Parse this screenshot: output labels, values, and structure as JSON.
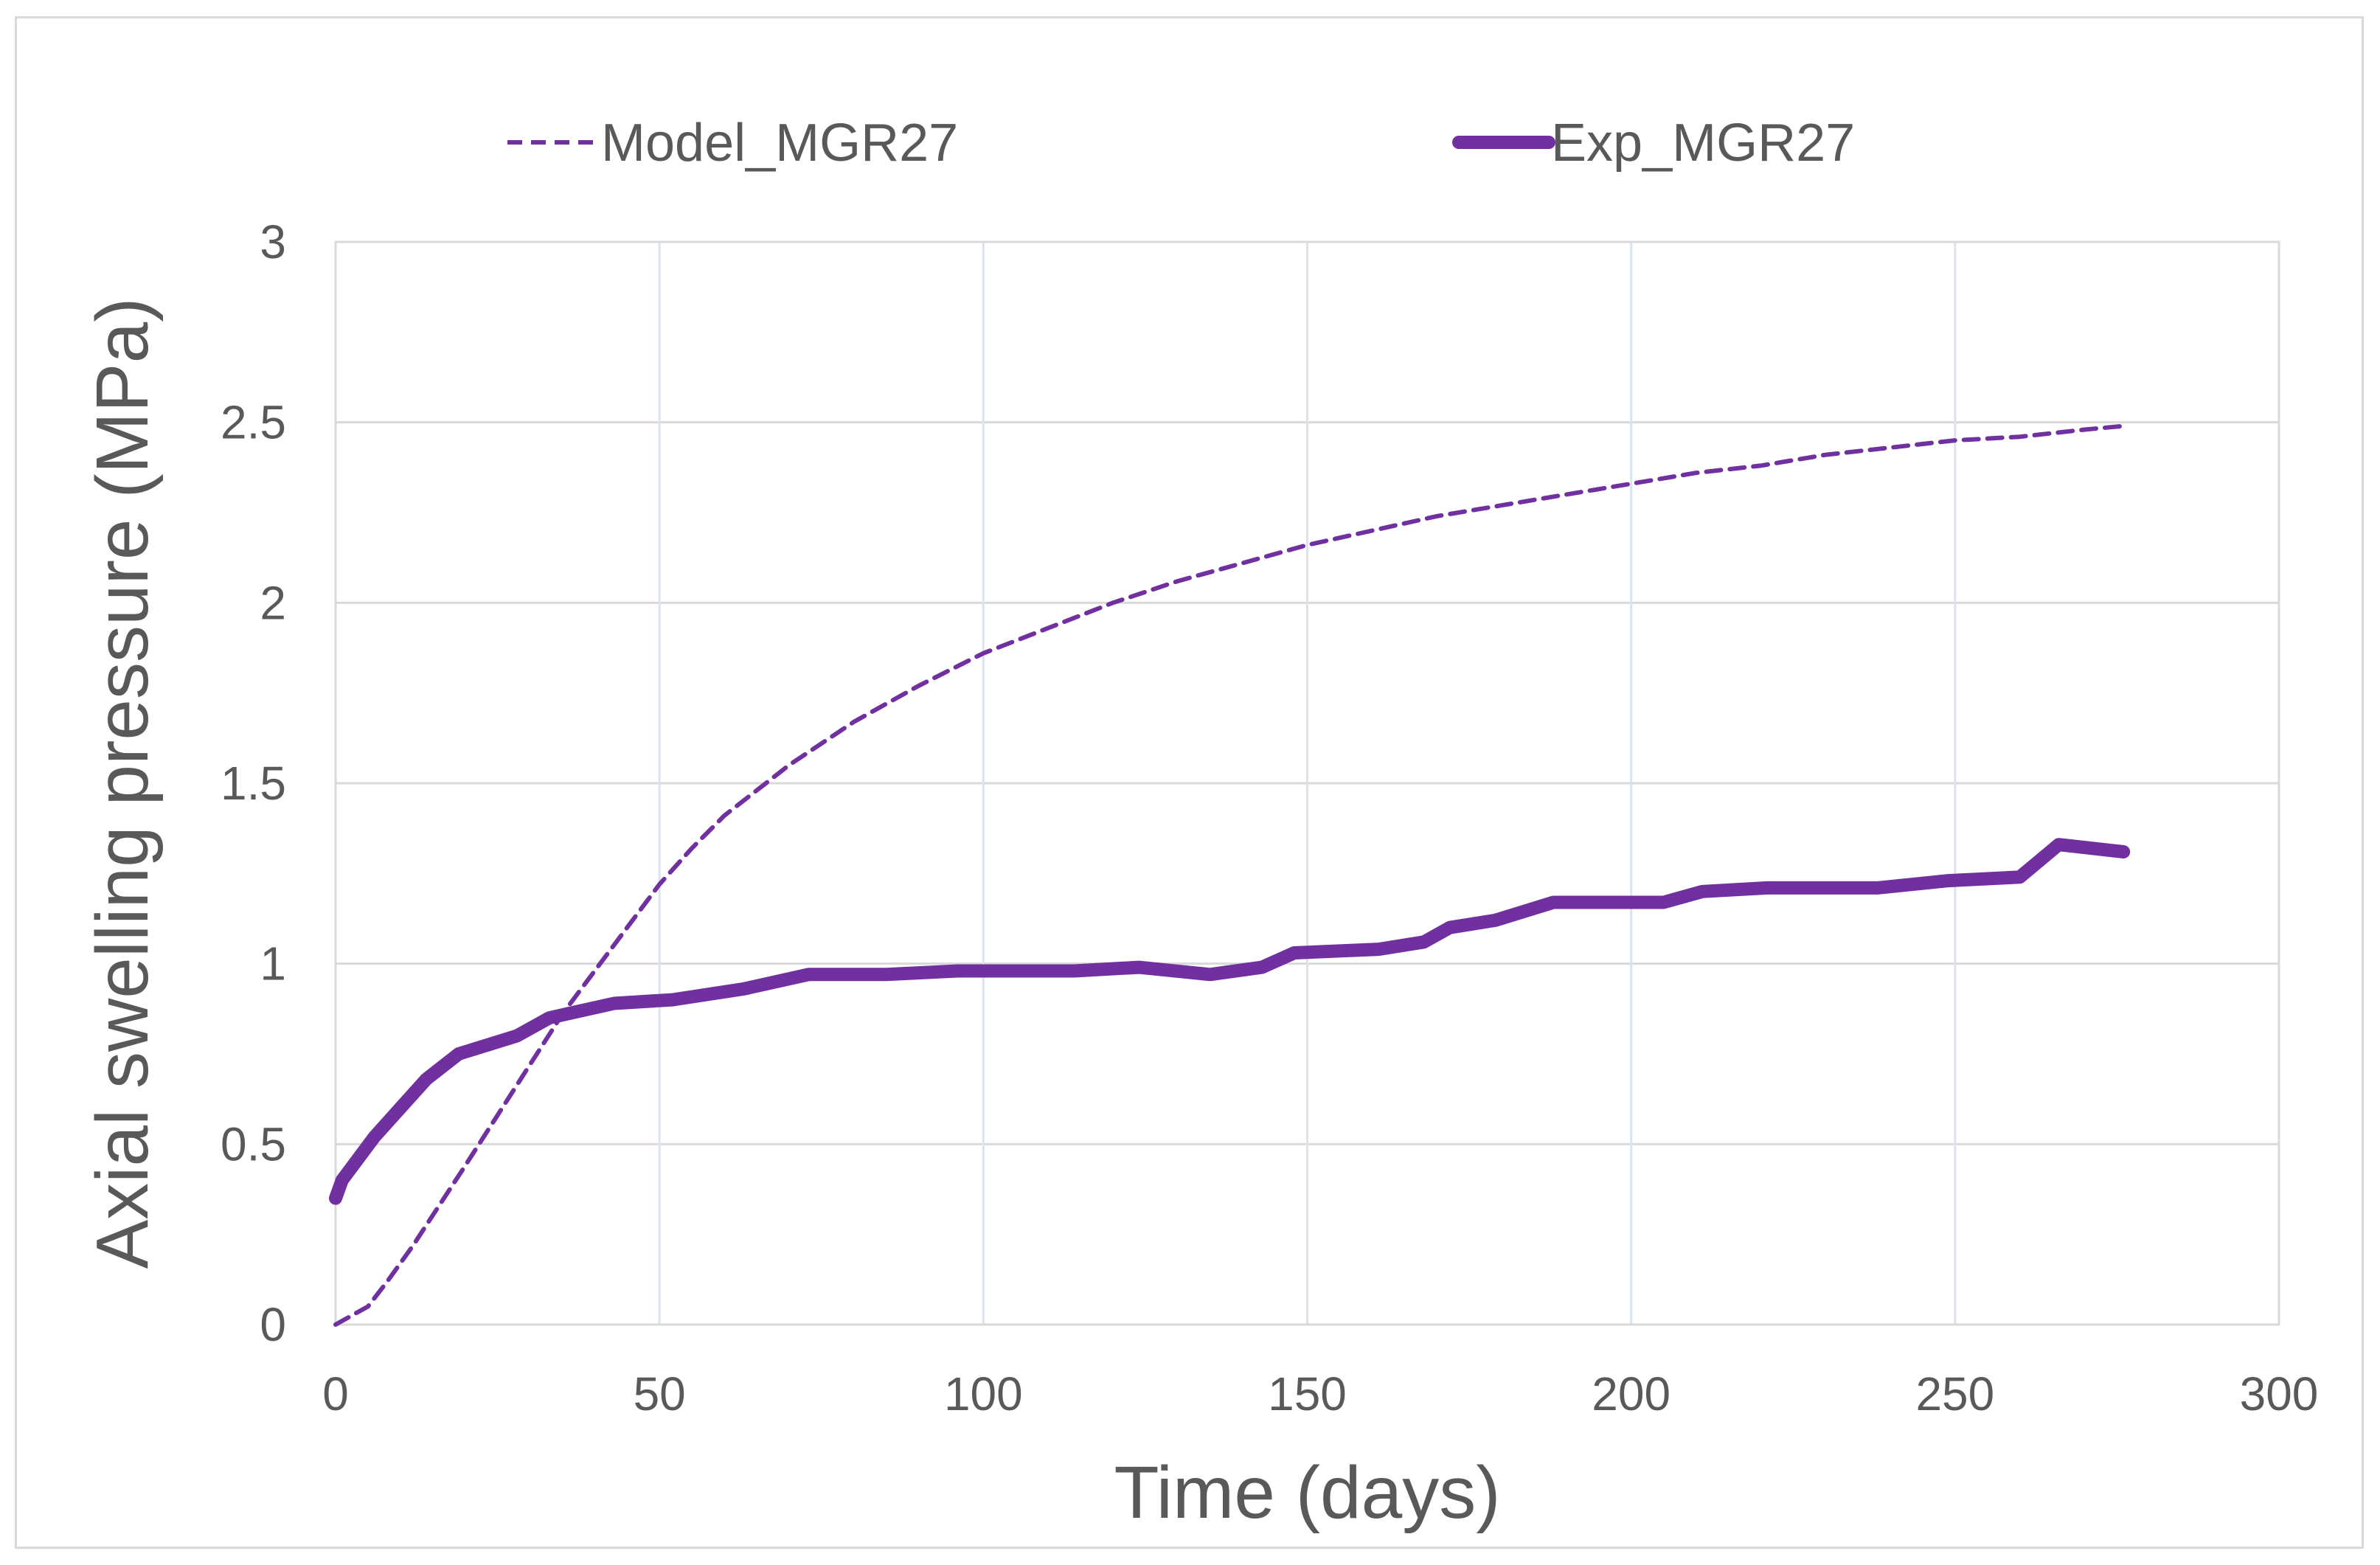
{
  "chart_data": {
    "type": "line",
    "title": "",
    "xlabel": "Time (days)",
    "ylabel": "Axial swelling pressure (MPa)",
    "xlim": [
      0,
      300
    ],
    "ylim": [
      0,
      3
    ],
    "xticks": [
      0,
      50,
      100,
      150,
      200,
      250,
      300
    ],
    "yticks": [
      0,
      0.5,
      1,
      1.5,
      2,
      2.5,
      3
    ],
    "xtick_labels": [
      "0",
      "50",
      "100",
      "150",
      "200",
      "250",
      "300"
    ],
    "ytick_labels": [
      "0",
      "0.5",
      "1",
      "1.5",
      "2",
      "2.5",
      "3"
    ],
    "grid": true,
    "legend_position": "top",
    "series": [
      {
        "name": "Model_MGR27",
        "color": "#7030a0",
        "style": "dashed",
        "x": [
          0,
          2,
          5,
          8,
          12,
          16,
          20,
          25,
          30,
          35,
          40,
          45,
          50,
          55,
          60,
          65,
          70,
          80,
          90,
          100,
          110,
          120,
          130,
          140,
          150,
          160,
          170,
          180,
          190,
          200,
          210,
          220,
          230,
          240,
          250,
          260,
          270,
          276
        ],
        "y": [
          0.0,
          0.02,
          0.05,
          0.12,
          0.22,
          0.33,
          0.44,
          0.58,
          0.72,
          0.86,
          0.98,
          1.1,
          1.22,
          1.32,
          1.41,
          1.48,
          1.55,
          1.67,
          1.77,
          1.86,
          1.93,
          2.0,
          2.06,
          2.11,
          2.16,
          2.2,
          2.24,
          2.27,
          2.3,
          2.33,
          2.36,
          2.38,
          2.41,
          2.43,
          2.45,
          2.46,
          2.48,
          2.49
        ]
      },
      {
        "name": "Exp_MGR27",
        "color": "#7030a0",
        "style": "solid",
        "x": [
          0,
          1,
          6,
          14,
          19,
          28,
          33,
          43,
          52,
          63,
          73,
          85,
          96,
          114,
          124,
          135,
          143,
          148,
          161,
          168,
          172,
          179,
          188,
          205,
          211,
          221,
          229,
          238,
          249,
          260,
          266,
          276
        ],
        "y": [
          0.35,
          0.4,
          0.52,
          0.68,
          0.75,
          0.8,
          0.85,
          0.89,
          0.9,
          0.93,
          0.97,
          0.97,
          0.98,
          0.98,
          0.99,
          0.97,
          0.99,
          1.03,
          1.04,
          1.06,
          1.1,
          1.12,
          1.17,
          1.17,
          1.2,
          1.21,
          1.21,
          1.21,
          1.23,
          1.24,
          1.33,
          1.31
        ]
      }
    ]
  }
}
